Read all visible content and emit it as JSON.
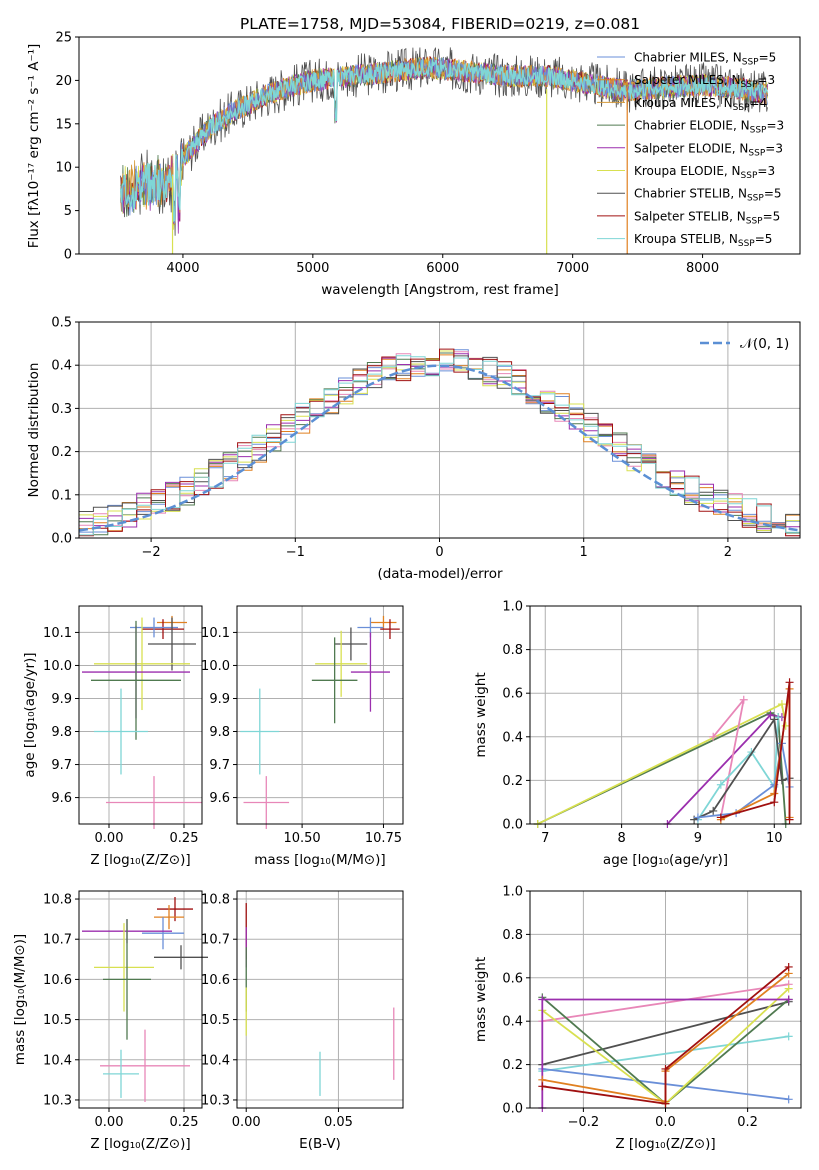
{
  "title": "PLATE=1758, MJD=53084, FIBERID=0219, z=0.081",
  "colors": {
    "chabrier_miles": "#6a8fd8",
    "salpeter_miles": "#e08020",
    "kroupa_miles": "#d49a3a",
    "chabrier_elodie": "#507a50",
    "salpeter_elodie": "#9b2fae",
    "kroupa_elodie": "#d8e050",
    "chabrier_stelib": "#505050",
    "salpeter_stelib": "#a01010",
    "kroupa_stelib": "#7fd6d6",
    "normal": "#5b8fd4",
    "pink": "#e887b8",
    "grid": "#b0b0b0"
  },
  "legend_top": [
    {
      "key": "chabrier_miles",
      "text": "Chabrier MILES, N",
      "sub": "SSP",
      "val": "=5"
    },
    {
      "key": "salpeter_miles",
      "text": "Salpeter MILES, N",
      "sub": "SSP",
      "val": "=3"
    },
    {
      "key": "kroupa_miles",
      "text": "Kroupa MILES, N",
      "sub": "SSP",
      "val": "=4"
    },
    {
      "key": "chabrier_elodie",
      "text": "Chabrier ELODIE, N",
      "sub": "SSP",
      "val": "=3"
    },
    {
      "key": "salpeter_elodie",
      "text": "Salpeter ELODIE, N",
      "sub": "SSP",
      "val": "=3"
    },
    {
      "key": "kroupa_elodie",
      "text": "Kroupa ELODIE, N",
      "sub": "SSP",
      "val": "=3"
    },
    {
      "key": "chabrier_stelib",
      "text": "Chabrier STELIB, N",
      "sub": "SSP",
      "val": "=5"
    },
    {
      "key": "salpeter_stelib",
      "text": "Salpeter STELIB, N",
      "sub": "SSP",
      "val": "=5"
    },
    {
      "key": "kroupa_stelib",
      "text": "Kroupa STELIB, N",
      "sub": "SSP",
      "val": "=5"
    }
  ],
  "legend_hist": "𝒩(0, 1)",
  "chart_data": [
    {
      "id": "spectrum",
      "type": "line",
      "title": "PLATE=1758, MJD=53084, FIBERID=0219, z=0.081",
      "xlabel": "wavelength [Angstrom, rest frame]",
      "ylabel": "Flux [fλ10⁻¹⁷ erg cm⁻² s⁻¹ A⁻¹]",
      "xlim": [
        3200,
        8750
      ],
      "ylim": [
        0,
        25
      ],
      "xticks": [
        "4000",
        "5000",
        "6000",
        "7000",
        "8000"
      ],
      "yticks": [
        "0",
        "5",
        "10",
        "15",
        "20",
        "25"
      ],
      "continuum": [
        [
          3520,
          7
        ],
        [
          3700,
          8
        ],
        [
          3900,
          8.5
        ],
        [
          4000,
          11
        ],
        [
          4200,
          14.5
        ],
        [
          4400,
          16.5
        ],
        [
          4600,
          18
        ],
        [
          4800,
          19.2
        ],
        [
          5000,
          20
        ],
        [
          5300,
          20.5
        ],
        [
          5600,
          21
        ],
        [
          5900,
          21.5
        ],
        [
          6200,
          21
        ],
        [
          6500,
          20.5
        ],
        [
          6800,
          20.5
        ],
        [
          7100,
          19.7
        ],
        [
          7400,
          18.8
        ],
        [
          7700,
          19.2
        ],
        [
          8000,
          19.5
        ],
        [
          8300,
          19
        ],
        [
          8500,
          18.5
        ]
      ],
      "grid": false
    },
    {
      "id": "residuals",
      "type": "histogram",
      "xlabel": "(data-model)/error",
      "ylabel": "Normed distribution",
      "xlim": [
        -2.5,
        2.5
      ],
      "ylim": [
        0,
        0.5
      ],
      "xticks": [
        "−2",
        "−1",
        "0",
        "1",
        "2"
      ],
      "yticks": [
        "0.0",
        "0.1",
        "0.2",
        "0.3",
        "0.4",
        "0.5"
      ],
      "series_name": "𝒩(0, 1)",
      "grid": true
    },
    {
      "id": "age_vs_Z",
      "type": "scatter",
      "xlabel": "Z [log₁₀(Z/Z⊙)]",
      "ylabel": "age  [log₁₀(age/yr)]",
      "xlim": [
        -0.1,
        0.31
      ],
      "ylim": [
        9.52,
        10.18
      ],
      "xticks": [
        "0.00",
        "0.25"
      ],
      "yticks": [
        "9.6",
        "9.7",
        "9.8",
        "9.9",
        "10.0",
        "10.1"
      ],
      "points": [
        {
          "key": "salpeter_miles",
          "x": 0.21,
          "y": 10.13,
          "xe": 0.05,
          "ye": 0.02
        },
        {
          "key": "salpeter_stelib",
          "x": 0.18,
          "y": 10.11,
          "xe": 0.07,
          "ye": 0.03
        },
        {
          "key": "chabrier_miles",
          "x": 0.15,
          "y": 10.115,
          "xe": 0.08,
          "ye": 0.03
        },
        {
          "key": "chabrier_stelib",
          "x": 0.21,
          "y": 10.065,
          "xe": 0.08,
          "ye": 0.08
        },
        {
          "key": "kroupa_elodie",
          "x": 0.11,
          "y": 10.005,
          "xe": 0.16,
          "ye": 0.14
        },
        {
          "key": "salpeter_elodie",
          "x": 0.09,
          "y": 9.98,
          "xe": 0.18,
          "ye": 0.14
        },
        {
          "key": "chabrier_elodie",
          "x": 0.09,
          "y": 9.955,
          "xe": 0.15,
          "ye": 0.18
        },
        {
          "key": "kroupa_stelib",
          "x": 0.04,
          "y": 9.8,
          "xe": 0.09,
          "ye": 0.13
        },
        {
          "key": "pink",
          "x": 0.15,
          "y": 9.585,
          "xe": 0.16,
          "ye": 0.08
        }
      ],
      "grid": true
    },
    {
      "id": "age_vs_mass",
      "type": "scatter",
      "xlabel": "mass [log₁₀(M/M⊙)]",
      "ylabel": "",
      "xlim": [
        10.3,
        10.81
      ],
      "ylim": [
        9.52,
        10.18
      ],
      "xticks": [
        "10.50",
        "10.75"
      ],
      "yticks": [
        "9.6",
        "9.7",
        "9.8",
        "9.9",
        "10.0",
        "10.1"
      ],
      "points": [
        {
          "key": "salpeter_miles",
          "x": 10.75,
          "y": 10.13,
          "xe": 0.04,
          "ye": 0.02
        },
        {
          "key": "salpeter_stelib",
          "x": 10.77,
          "y": 10.11,
          "xe": 0.03,
          "ye": 0.03
        },
        {
          "key": "chabrier_miles",
          "x": 10.71,
          "y": 10.115,
          "xe": 0.04,
          "ye": 0.03
        },
        {
          "key": "chabrier_stelib",
          "x": 10.65,
          "y": 10.065,
          "xe": 0.05,
          "ye": 0.05
        },
        {
          "key": "kroupa_elodie",
          "x": 10.62,
          "y": 10.005,
          "xe": 0.08,
          "ye": 0.1
        },
        {
          "key": "salpeter_elodie",
          "x": 10.71,
          "y": 9.98,
          "xe": 0.06,
          "ye": 0.12
        },
        {
          "key": "chabrier_elodie",
          "x": 10.6,
          "y": 9.955,
          "xe": 0.07,
          "ye": 0.13
        },
        {
          "key": "kroupa_stelib",
          "x": 10.37,
          "y": 9.8,
          "xe": 0.06,
          "ye": 0.13
        },
        {
          "key": "pink",
          "x": 10.39,
          "y": 9.585,
          "xe": 0.07,
          "ye": 0.08
        }
      ],
      "grid": true
    },
    {
      "id": "weight_vs_age",
      "type": "line",
      "xlabel": "age  [log₁₀(age/yr)]",
      "ylabel": "mass weight",
      "xlim": [
        6.8,
        10.35
      ],
      "ylim": [
        0,
        1
      ],
      "xticks": [
        "7",
        "8",
        "9",
        "10"
      ],
      "yticks": [
        "0.0",
        "0.2",
        "0.4",
        "0.6",
        "0.8",
        "1.0"
      ],
      "series": [
        {
          "key": "chabrier_elodie",
          "points": [
            [
              6.9,
              0
            ],
            [
              9.95,
              0.51
            ],
            [
              10.05,
              0.49
            ],
            [
              10.15,
              0
            ]
          ]
        },
        {
          "key": "kroupa_elodie",
          "points": [
            [
              6.9,
              0
            ],
            [
              10.1,
              0.55
            ],
            [
              10.15,
              0.45
            ]
          ]
        },
        {
          "key": "salpeter_elodie",
          "points": [
            [
              8.6,
              0
            ],
            [
              9.95,
              0.5
            ],
            [
              10.1,
              0.49
            ]
          ]
        },
        {
          "key": "pink",
          "points": [
            [
              9.2,
              0.4
            ],
            [
              9.6,
              0.57
            ],
            [
              9.3,
              0.03
            ]
          ]
        },
        {
          "key": "kroupa_stelib",
          "points": [
            [
              9.0,
              0.02
            ],
            [
              9.3,
              0.18
            ],
            [
              9.7,
              0.33
            ],
            [
              10.0,
              0.17
            ],
            [
              10.05,
              0.49
            ]
          ]
        },
        {
          "key": "chabrier_stelib",
          "points": [
            [
              8.95,
              0.02
            ],
            [
              9.2,
              0.06
            ],
            [
              10.0,
              0.48
            ],
            [
              10.1,
              0.2
            ],
            [
              10.2,
              0.21
            ]
          ]
        },
        {
          "key": "chabrier_miles",
          "points": [
            [
              9.0,
              0.03
            ],
            [
              9.5,
              0.05
            ],
            [
              10.0,
              0.18
            ],
            [
              10.1,
              0.37
            ],
            [
              10.2,
              0.17
            ]
          ]
        },
        {
          "key": "salpeter_miles",
          "points": [
            [
              9.3,
              0.02
            ],
            [
              10.0,
              0.14
            ],
            [
              10.2,
              0.62
            ],
            [
              10.2,
              0.03
            ]
          ]
        },
        {
          "key": "salpeter_stelib",
          "points": [
            [
              9.3,
              0.03
            ],
            [
              10.0,
              0.1
            ],
            [
              10.2,
              0.65
            ],
            [
              10.2,
              0.02
            ]
          ]
        }
      ],
      "grid": true
    },
    {
      "id": "mass_vs_Z",
      "type": "scatter",
      "xlabel": "Z [log₁₀(Z/Z⊙)]",
      "ylabel": "mass [log₁₀(M/M⊙)]",
      "xlim": [
        -0.1,
        0.31
      ],
      "ylim": [
        10.28,
        10.82
      ],
      "xticks": [
        "0.00",
        "0.25"
      ],
      "yticks": [
        "10.3",
        "10.4",
        "10.5",
        "10.6",
        "10.7",
        "10.8"
      ],
      "points": [
        {
          "key": "salpeter_stelib",
          "x": 0.22,
          "y": 10.775,
          "xe": 0.06,
          "ye": 0.03
        },
        {
          "key": "salpeter_miles",
          "x": 0.2,
          "y": 10.755,
          "xe": 0.05,
          "ye": 0.03
        },
        {
          "key": "chabrier_miles",
          "x": 0.18,
          "y": 10.715,
          "xe": 0.07,
          "ye": 0.04
        },
        {
          "key": "salpeter_elodie",
          "x": 0.06,
          "y": 10.72,
          "xe": 0.15,
          "ye": 0.03
        },
        {
          "key": "chabrier_stelib",
          "x": 0.24,
          "y": 10.655,
          "xe": 0.09,
          "ye": 0.03
        },
        {
          "key": "kroupa_elodie",
          "x": 0.05,
          "y": 10.63,
          "xe": 0.1,
          "ye": 0.11
        },
        {
          "key": "chabrier_elodie",
          "x": 0.06,
          "y": 10.6,
          "xe": 0.08,
          "ye": 0.15
        },
        {
          "key": "pink",
          "x": 0.12,
          "y": 10.385,
          "xe": 0.15,
          "ye": 0.09
        },
        {
          "key": "kroupa_stelib",
          "x": 0.04,
          "y": 10.365,
          "xe": 0.06,
          "ye": 0.06
        }
      ],
      "grid": true
    },
    {
      "id": "mass_vs_ebv",
      "type": "scatter",
      "xlabel": "E(B-V)",
      "ylabel": "",
      "xlim": [
        -0.005,
        0.085
      ],
      "ylim": [
        10.28,
        10.82
      ],
      "xticks": [
        "0.00",
        "0.05"
      ],
      "yticks": [
        "10.3",
        "10.4",
        "10.5",
        "10.6",
        "10.7",
        "10.8"
      ],
      "points": [
        {
          "key": "salpeter_stelib",
          "x": 0.0,
          "y": 10.72,
          "xe": 0,
          "ye": 0.07
        },
        {
          "key": "salpeter_elodie",
          "x": 0.0,
          "y": 10.68,
          "xe": 0,
          "ye": 0.05
        },
        {
          "key": "chabrier_elodie",
          "x": 0.0,
          "y": 10.6,
          "xe": 0,
          "ye": 0.08
        },
        {
          "key": "kroupa_elodie",
          "x": 0.0,
          "y": 10.52,
          "xe": 0,
          "ye": 0.06
        },
        {
          "key": "kroupa_stelib",
          "x": 0.04,
          "y": 10.365,
          "xe": 0,
          "ye": 0.055
        },
        {
          "key": "pink",
          "x": 0.08,
          "y": 10.44,
          "xe": 0,
          "ye": 0.09
        }
      ],
      "grid": true
    },
    {
      "id": "weight_vs_Z",
      "type": "line",
      "xlabel": "Z [log₁₀(Z/Z⊙)]",
      "ylabel": "mass weight",
      "xlim": [
        -0.33,
        0.33
      ],
      "ylim": [
        0,
        1
      ],
      "xticks": [
        "−0.2",
        "0.0",
        "0.2"
      ],
      "yticks": [
        "0.0",
        "0.2",
        "0.4",
        "0.6",
        "0.8",
        "1.0"
      ],
      "series": [
        {
          "key": "pink",
          "points": [
            [
              -0.3,
              0.4
            ],
            [
              0.3,
              0.57
            ]
          ]
        },
        {
          "key": "chabrier_stelib",
          "points": [
            [
              -0.3,
              0.2
            ],
            [
              0.3,
              0.49
            ]
          ]
        },
        {
          "key": "kroupa_stelib",
          "points": [
            [
              -0.3,
              0.17
            ],
            [
              0.3,
              0.33
            ]
          ]
        },
        {
          "key": "chabrier_miles",
          "points": [
            [
              -0.3,
              0.18
            ],
            [
              0.3,
              0.04
            ]
          ]
        },
        {
          "key": "chabrier_elodie",
          "points": [
            [
              -0.3,
              0.51
            ],
            [
              0.0,
              0.02
            ],
            [
              0.3,
              0.5
            ]
          ]
        },
        {
          "key": "kroupa_elodie",
          "points": [
            [
              -0.3,
              0.45
            ],
            [
              0.0,
              0.02
            ],
            [
              0.3,
              0.55
            ]
          ]
        },
        {
          "key": "salpeter_elodie",
          "points": [
            [
              -0.3,
              0.0
            ],
            [
              -0.3,
              0.5
            ],
            [
              0.3,
              0.5
            ]
          ]
        },
        {
          "key": "salpeter_miles",
          "points": [
            [
              -0.3,
              0.13
            ],
            [
              0.0,
              0.03
            ],
            [
              0.0,
              0.17
            ],
            [
              0.3,
              0.62
            ]
          ]
        },
        {
          "key": "salpeter_stelib",
          "points": [
            [
              -0.3,
              0.1
            ],
            [
              0.0,
              0.02
            ],
            [
              0.0,
              0.18
            ],
            [
              0.3,
              0.65
            ]
          ]
        }
      ],
      "grid": true
    }
  ]
}
